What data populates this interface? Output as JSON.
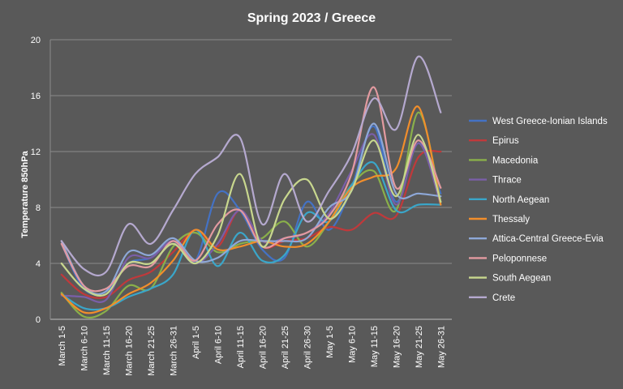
{
  "chart_data": {
    "type": "line",
    "title": "Spring 2023 / Greece",
    "xlabel": "",
    "ylabel": "Temperature 850hPa",
    "ylim": [
      0,
      20
    ],
    "yticks": [
      0,
      4,
      8,
      12,
      16,
      20
    ],
    "grid": "horizontal",
    "legend_position": "right",
    "smooth": true,
    "categories": [
      "March 1-5",
      "March 6-10",
      "March 11-15",
      "March 16-20",
      "March 21-25",
      "March 26-31",
      "April 1-5",
      "April 6-10",
      "April 11-15",
      "April 16-20",
      "April 21-25",
      "April 26-30",
      "May 1-5",
      "May 6-10",
      "May 11-15",
      "May 16-20",
      "May 21-25",
      "May 26-31"
    ],
    "series": [
      {
        "name": "West Greece-Ionian Islands",
        "color": "#4472c4",
        "values": [
          5.4,
          2.2,
          2.0,
          4.0,
          4.4,
          5.6,
          4.2,
          9.0,
          7.8,
          5.0,
          4.4,
          8.4,
          6.4,
          9.4,
          13.8,
          8.4,
          12.6,
          9.0
        ]
      },
      {
        "name": "Epirus",
        "color": "#c0393b",
        "values": [
          3.2,
          1.8,
          1.6,
          2.8,
          3.4,
          4.8,
          6.4,
          5.2,
          7.8,
          5.2,
          5.6,
          5.8,
          6.6,
          6.4,
          7.6,
          7.4,
          11.6,
          12.0
        ]
      },
      {
        "name": "Macedonia",
        "color": "#8ab04a",
        "values": [
          1.9,
          0.2,
          0.6,
          2.4,
          2.2,
          5.2,
          6.2,
          4.8,
          5.4,
          5.8,
          7.0,
          5.2,
          7.0,
          9.6,
          10.6,
          7.8,
          14.8,
          8.4
        ]
      },
      {
        "name": "Thrace",
        "color": "#7a5fa8",
        "values": [
          1.7,
          1.6,
          1.4,
          4.4,
          4.4,
          5.6,
          4.0,
          5.4,
          7.8,
          5.6,
          5.8,
          6.2,
          7.6,
          10.6,
          13.2,
          8.2,
          12.6,
          8.2
        ]
      },
      {
        "name": "North Aegean",
        "color": "#3aa6c9",
        "values": [
          1.8,
          0.8,
          0.8,
          1.6,
          2.2,
          3.2,
          6.4,
          3.8,
          6.2,
          4.2,
          4.6,
          7.6,
          7.0,
          9.6,
          11.2,
          7.8,
          8.2,
          8.2
        ]
      },
      {
        "name": "Thessaly",
        "color": "#f28e2b",
        "values": [
          1.8,
          0.5,
          0.8,
          1.8,
          2.6,
          4.2,
          6.4,
          5.0,
          5.2,
          5.6,
          5.2,
          5.4,
          7.0,
          9.4,
          10.2,
          10.8,
          15.2,
          8.2
        ]
      },
      {
        "name": "Attica-Central Greece-Evia",
        "color": "#8ea8d8",
        "values": [
          5.6,
          2.4,
          2.0,
          4.8,
          4.6,
          5.8,
          4.2,
          4.4,
          5.6,
          5.6,
          5.6,
          5.8,
          8.0,
          9.2,
          14.0,
          9.0,
          9.0,
          8.8
        ]
      },
      {
        "name": "Peloponnese",
        "color": "#e39aa0",
        "values": [
          5.4,
          2.4,
          2.2,
          3.8,
          3.8,
          5.6,
          4.2,
          6.8,
          7.8,
          5.2,
          5.8,
          6.2,
          7.4,
          10.4,
          16.6,
          9.4,
          12.8,
          9.4
        ]
      },
      {
        "name": "South Aegean",
        "color": "#c8d78e",
        "values": [
          4.0,
          2.2,
          1.8,
          4.0,
          4.0,
          5.4,
          4.0,
          6.0,
          10.4,
          5.2,
          8.6,
          10.0,
          7.2,
          9.2,
          12.8,
          8.8,
          13.2,
          8.4
        ]
      },
      {
        "name": "Crete",
        "color": "#b5a9cf",
        "values": [
          5.6,
          3.6,
          3.4,
          6.8,
          5.4,
          7.8,
          10.4,
          11.6,
          13.0,
          6.8,
          10.4,
          7.0,
          9.2,
          11.8,
          15.8,
          13.6,
          18.8,
          14.8
        ]
      }
    ]
  }
}
